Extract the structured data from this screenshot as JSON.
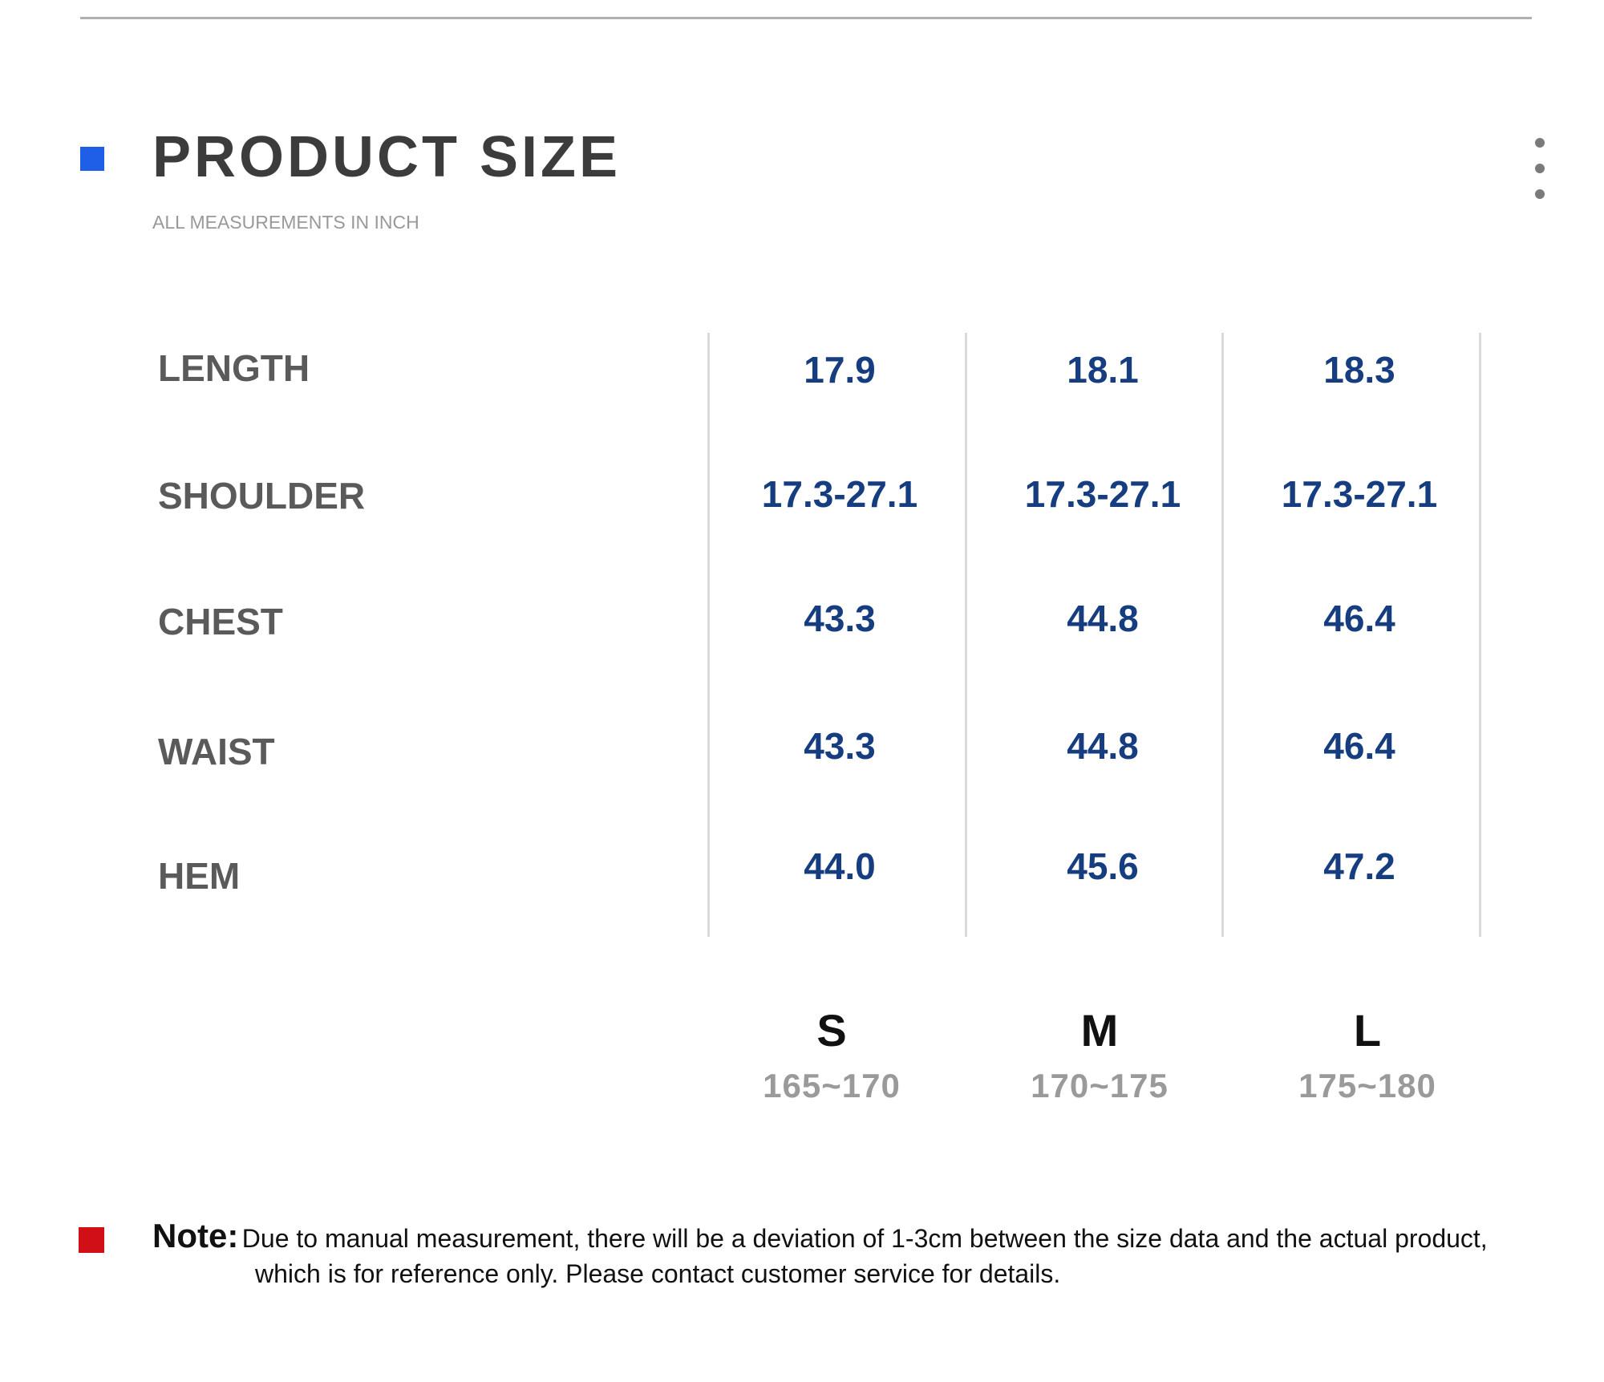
{
  "header": {
    "title": "PRODUCT SIZE",
    "subtitle": "ALL MEASUREMENTS IN INCH",
    "menu_icon": "vertical-ellipsis-icon"
  },
  "colors": {
    "title_marker": "#1f5fe8",
    "note_marker": "#d10f17",
    "value_text": "#163d80",
    "label_text": "#5a5a5a"
  },
  "table": {
    "rows": [
      {
        "label": "LENGTH",
        "values": [
          "17.9",
          "18.1",
          "18.3"
        ]
      },
      {
        "label": "SHOULDER",
        "values": [
          "17.3-27.1",
          "17.3-27.1",
          "17.3-27.1"
        ]
      },
      {
        "label": "CHEST",
        "values": [
          "43.3",
          "44.8",
          "46.4"
        ]
      },
      {
        "label": "WAIST",
        "values": [
          "43.3",
          "44.8",
          "46.4"
        ]
      },
      {
        "label": "HEM",
        "values": [
          "44.0",
          "45.6",
          "47.2"
        ]
      }
    ],
    "sizes": [
      {
        "name": "S",
        "range": "165~170"
      },
      {
        "name": "M",
        "range": "170~175"
      },
      {
        "name": "L",
        "range": "175~180"
      }
    ]
  },
  "note": {
    "label": "Note:",
    "line1": "Due to manual measurement, there will be a deviation of 1-3cm between the size data and the actual product,",
    "line2": "which is for reference only. Please contact customer service for details."
  }
}
